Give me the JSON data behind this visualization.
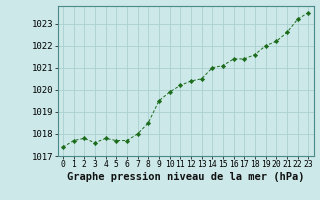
{
  "x": [
    0,
    1,
    2,
    3,
    4,
    5,
    6,
    7,
    8,
    9,
    10,
    11,
    12,
    13,
    14,
    15,
    16,
    17,
    18,
    19,
    20,
    21,
    22,
    23
  ],
  "y": [
    1017.4,
    1017.7,
    1017.8,
    1017.6,
    1017.8,
    1017.7,
    1017.7,
    1018.0,
    1018.5,
    1019.5,
    1019.9,
    1020.2,
    1020.4,
    1020.5,
    1021.0,
    1021.1,
    1021.4,
    1021.4,
    1021.6,
    1022.0,
    1022.2,
    1022.6,
    1023.2,
    1023.5
  ],
  "line_color": "#1a6b1a",
  "marker_color": "#1a6b1a",
  "bg_color": "#cce8e8",
  "grid_color": "#aad0d0",
  "title": "Graphe pression niveau de la mer (hPa)",
  "ylim_min": 1017.0,
  "ylim_max": 1023.8,
  "xlim_min": -0.5,
  "xlim_max": 23.5,
  "yticks": [
    1017,
    1018,
    1019,
    1020,
    1021,
    1022,
    1023
  ],
  "xticks": [
    0,
    1,
    2,
    3,
    4,
    5,
    6,
    7,
    8,
    9,
    10,
    11,
    12,
    13,
    14,
    15,
    16,
    17,
    18,
    19,
    20,
    21,
    22,
    23
  ],
  "title_fontsize": 7.5,
  "ytick_fontsize": 6.5,
  "xtick_fontsize": 5.8
}
